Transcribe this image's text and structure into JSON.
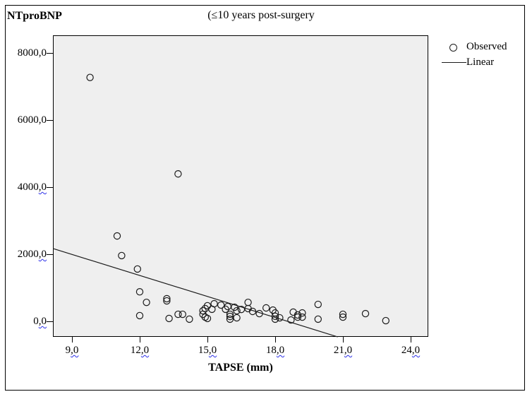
{
  "figure": {
    "corner_title": "NTproBNP",
    "title": "(≤10 years post-surgery"
  },
  "legend": {
    "observed": "Observed",
    "linear": "Linear"
  },
  "chart_data": {
    "type": "scatter",
    "title": "(≤10 years post-surgery",
    "xlabel": "TAPSE (mm)",
    "ylabel": "NTproBNP",
    "xlim": [
      8.16,
      24.78
    ],
    "ylim": [
      -465,
      8525
    ],
    "grid": false,
    "legend_position": "top-right-outside",
    "x_ticks": [
      {
        "value": 9,
        "label": "9,0",
        "squiggle": true
      },
      {
        "value": 12,
        "label": "12,0",
        "squiggle": true
      },
      {
        "value": 15,
        "label": "15,0",
        "squiggle": true
      },
      {
        "value": 18,
        "label": "18,0",
        "squiggle": true
      },
      {
        "value": 21,
        "label": "21,0",
        "squiggle": true
      },
      {
        "value": 24,
        "label": "24,0",
        "squiggle": true
      }
    ],
    "y_ticks": [
      {
        "value": 0,
        "label": "0,0",
        "squiggle": true
      },
      {
        "value": 2000,
        "label": "2000,0",
        "squiggle": true
      },
      {
        "value": 4000,
        "label": "4000,0",
        "squiggle": true
      },
      {
        "value": 6000,
        "label": "6000,0",
        "squiggle": false
      },
      {
        "value": 8000,
        "label": "8000,0",
        "squiggle": false
      }
    ],
    "series": [
      {
        "name": "Observed",
        "type": "scatter",
        "marker": "open-circle",
        "points": [
          [
            9.8,
            7270
          ],
          [
            13.7,
            4395
          ],
          [
            11.0,
            2545
          ],
          [
            11.2,
            1960
          ],
          [
            11.9,
            1560
          ],
          [
            12.0,
            880
          ],
          [
            12.3,
            565
          ],
          [
            12.0,
            170
          ],
          [
            13.2,
            675
          ],
          [
            13.2,
            610
          ],
          [
            13.3,
            85
          ],
          [
            13.7,
            210
          ],
          [
            13.9,
            210
          ],
          [
            14.2,
            65
          ],
          [
            14.8,
            315
          ],
          [
            14.9,
            380
          ],
          [
            14.8,
            210
          ],
          [
            14.9,
            125
          ],
          [
            15.0,
            85
          ],
          [
            15.0,
            465
          ],
          [
            15.2,
            360
          ],
          [
            15.3,
            525
          ],
          [
            15.6,
            485
          ],
          [
            15.8,
            360
          ],
          [
            15.9,
            440
          ],
          [
            16.0,
            210
          ],
          [
            16.0,
            145
          ],
          [
            16.0,
            65
          ],
          [
            16.2,
            420
          ],
          [
            16.3,
            315
          ],
          [
            16.3,
            105
          ],
          [
            16.5,
            355
          ],
          [
            16.8,
            565
          ],
          [
            16.8,
            380
          ],
          [
            17.0,
            295
          ],
          [
            17.3,
            230
          ],
          [
            17.6,
            400
          ],
          [
            17.9,
            335
          ],
          [
            18.0,
            250
          ],
          [
            18.0,
            150
          ],
          [
            18.0,
            65
          ],
          [
            18.2,
            105
          ],
          [
            18.7,
            40
          ],
          [
            18.8,
            275
          ],
          [
            19.0,
            190
          ],
          [
            19.0,
            125
          ],
          [
            19.2,
            250
          ],
          [
            19.2,
            125
          ],
          [
            19.9,
            505
          ],
          [
            19.9,
            65
          ],
          [
            21.0,
            210
          ],
          [
            21.0,
            125
          ],
          [
            22.0,
            230
          ],
          [
            22.9,
            20
          ]
        ]
      },
      {
        "name": "Linear",
        "type": "line",
        "points": [
          [
            8.16,
            2170
          ],
          [
            20.77,
            -465
          ]
        ]
      }
    ],
    "colors": {
      "plot_background": "#efefef",
      "marker_stroke": "#1c1c1c",
      "line_stroke": "#1c1c1c",
      "squiggle": "#2a2ee8"
    }
  }
}
